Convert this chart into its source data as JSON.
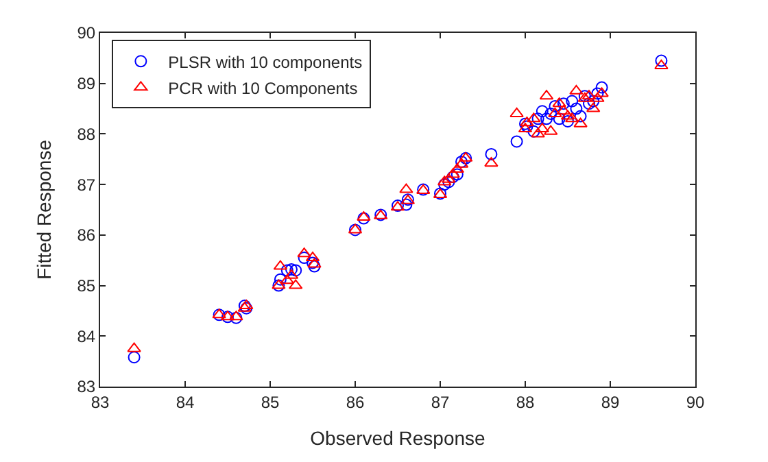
{
  "chart_data": {
    "type": "scatter",
    "xlabel": "Observed Response",
    "ylabel": "Fitted Response",
    "x": [
      83.4,
      84.4,
      84.5,
      84.6,
      84.7,
      84.72,
      85.1,
      85.12,
      85.2,
      85.25,
      85.3,
      85.4,
      85.5,
      85.52,
      86.0,
      86.1,
      86.3,
      86.5,
      86.6,
      86.62,
      86.8,
      87.0,
      87.05,
      87.1,
      87.15,
      87.2,
      87.25,
      87.3,
      87.6,
      87.9,
      88.0,
      88.02,
      88.1,
      88.15,
      88.2,
      88.25,
      88.3,
      88.35,
      88.4,
      88.45,
      88.5,
      88.55,
      88.6,
      88.65,
      88.7,
      88.75,
      88.8,
      88.85,
      88.9,
      89.6
    ],
    "series": [
      {
        "name": "PLSR with 10 components",
        "color": "#0000ff",
        "marker": "circle",
        "values": [
          83.58,
          84.42,
          84.38,
          84.36,
          84.6,
          84.55,
          85.0,
          85.12,
          85.3,
          85.32,
          85.3,
          85.55,
          85.45,
          85.38,
          86.1,
          86.33,
          86.4,
          86.58,
          86.6,
          86.7,
          86.9,
          86.82,
          87.0,
          87.05,
          87.15,
          87.2,
          87.45,
          87.52,
          87.6,
          87.85,
          88.2,
          88.15,
          88.05,
          88.3,
          88.45,
          88.3,
          88.4,
          88.55,
          88.3,
          88.6,
          88.25,
          88.65,
          88.5,
          88.35,
          88.75,
          88.6,
          88.65,
          88.8,
          88.92,
          89.45
        ]
      },
      {
        "name": "PCR with 10 Components",
        "color": "#ff0000",
        "marker": "triangle",
        "values": [
          83.75,
          84.42,
          84.38,
          84.38,
          84.55,
          84.6,
          85.0,
          85.38,
          85.1,
          85.2,
          85.0,
          85.63,
          85.55,
          85.42,
          86.1,
          86.35,
          86.38,
          86.55,
          86.9,
          86.68,
          86.88,
          86.8,
          87.05,
          87.1,
          87.2,
          87.3,
          87.4,
          87.52,
          87.42,
          88.4,
          88.1,
          88.22,
          88.3,
          88.0,
          88.1,
          88.75,
          88.05,
          88.4,
          88.6,
          88.45,
          88.35,
          88.3,
          88.85,
          88.2,
          88.7,
          88.75,
          88.5,
          88.7,
          88.8,
          89.35
        ]
      }
    ],
    "xlim": [
      83,
      90
    ],
    "xticks": [
      83,
      84,
      85,
      86,
      87,
      88,
      89,
      90
    ],
    "ylim": [
      83,
      90
    ],
    "yticks": [
      83,
      84,
      85,
      86,
      87,
      88,
      89,
      90
    ],
    "legend": "top left"
  }
}
